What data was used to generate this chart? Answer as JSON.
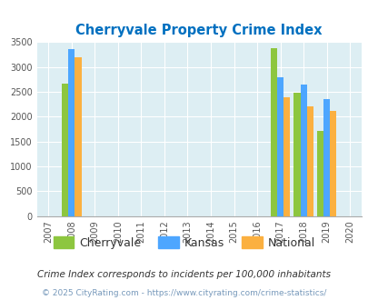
{
  "title": "Cherryvale Property Crime Index",
  "years": [
    2007,
    2008,
    2009,
    2010,
    2011,
    2012,
    2013,
    2014,
    2015,
    2016,
    2017,
    2018,
    2019,
    2020
  ],
  "cherryvale": [
    null,
    2670,
    null,
    null,
    null,
    null,
    null,
    null,
    null,
    null,
    3370,
    2480,
    1720,
    null
  ],
  "kansas": [
    null,
    3360,
    null,
    null,
    null,
    null,
    null,
    null,
    null,
    null,
    2790,
    2640,
    2350,
    null
  ],
  "national": [
    null,
    3200,
    null,
    null,
    null,
    null,
    null,
    null,
    null,
    null,
    2380,
    2200,
    2110,
    null
  ],
  "cherryvale_color": "#8dc63f",
  "kansas_color": "#4da6ff",
  "national_color": "#fbb040",
  "bg_color": "#ddeef3",
  "title_color": "#0070c0",
  "ylim": [
    0,
    3500
  ],
  "yticks": [
    0,
    500,
    1000,
    1500,
    2000,
    2500,
    3000,
    3500
  ],
  "footnote1": "Crime Index corresponds to incidents per 100,000 inhabitants",
  "footnote2": "© 2025 CityRating.com - https://www.cityrating.com/crime-statistics/",
  "bar_width": 0.28,
  "legend_labels": [
    "Cherryvale",
    "Kansas",
    "National"
  ],
  "figsize": [
    4.06,
    3.3
  ],
  "dpi": 100
}
